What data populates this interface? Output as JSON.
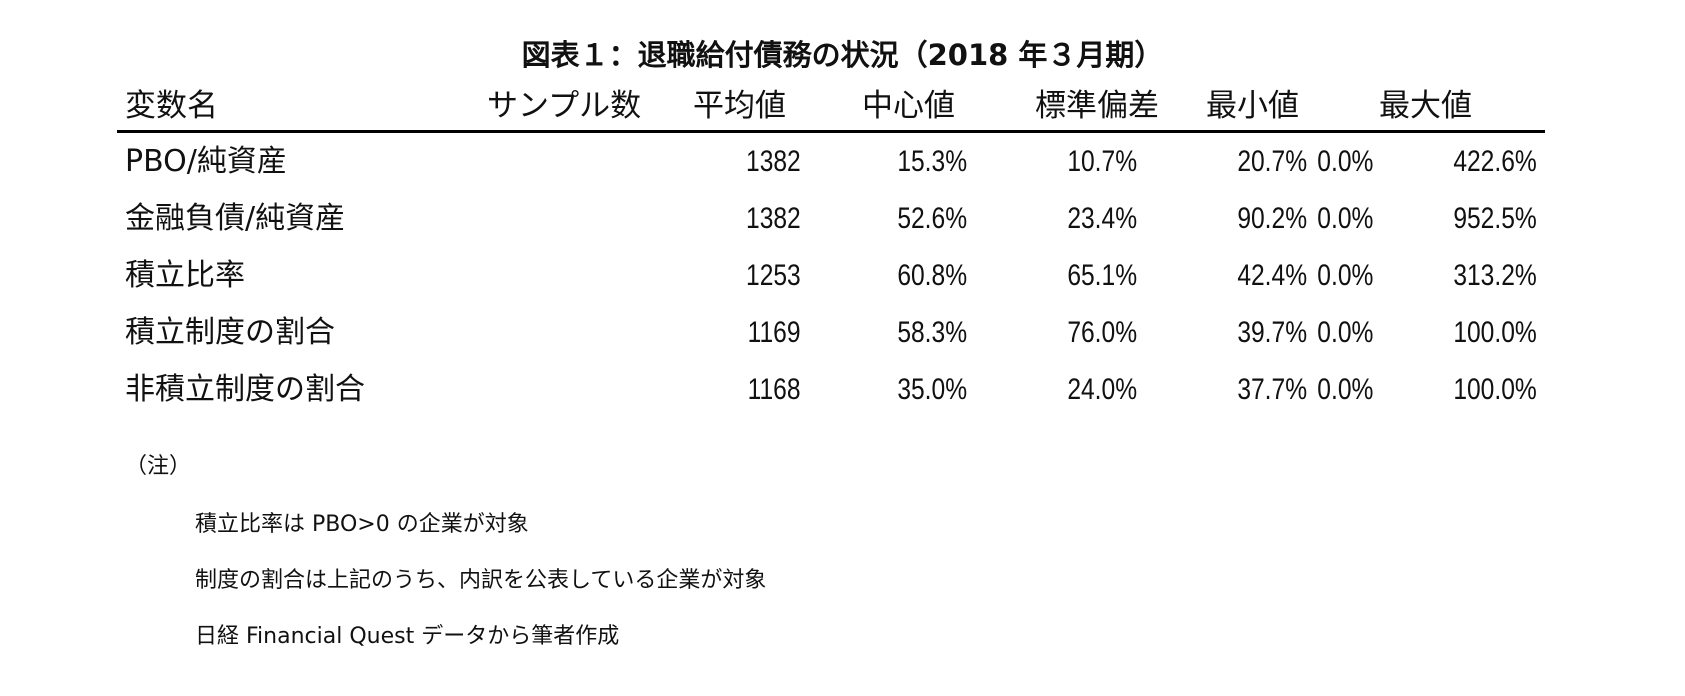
{
  "document": {
    "title": "図表１：退職給付債務の状況（2018 年３月期）"
  },
  "table": {
    "headers": {
      "name": "変数名",
      "sample": "サンプル数",
      "mean": "平均値",
      "median": "中心値",
      "sd": "標準偏差",
      "min": "最小値",
      "max": "最大値"
    },
    "rows": [
      {
        "name": "PBO/純資産",
        "sample": "1382",
        "mean": "15.3%",
        "median": "10.7%",
        "sd": "20.7%",
        "min": "0.0%",
        "max": "422.6%"
      },
      {
        "name": "金融負債/純資産",
        "sample": "1382",
        "mean": "52.6%",
        "median": "23.4%",
        "sd": "90.2%",
        "min": "0.0%",
        "max": "952.5%"
      },
      {
        "name": "積立比率",
        "sample": "1253",
        "mean": "60.8%",
        "median": "65.1%",
        "sd": "42.4%",
        "min": "0.0%",
        "max": "313.2%"
      },
      {
        "name": "積立制度の割合",
        "sample": "1169",
        "mean": "58.3%",
        "median": "76.0%",
        "sd": "39.7%",
        "min": "0.0%",
        "max": "100.0%"
      },
      {
        "name": "非積立制度の割合",
        "sample": "1168",
        "mean": "35.0%",
        "median": "24.0%",
        "sd": "37.7%",
        "min": "0.0%",
        "max": "100.0%"
      }
    ]
  },
  "notes": {
    "heading": "（注）",
    "lines": [
      "積立比率は PBO>0 の企業が対象",
      "制度の割合は上記のうち、内訳を公表している企業が対象",
      "日経 Financial Quest データから筆者作成"
    ]
  },
  "chart_data": {
    "type": "table",
    "title": "図表１：退職給付債務の状況（2018 年３月期）",
    "columns": [
      "変数名",
      "サンプル数",
      "平均値",
      "中心値",
      "標準偏差",
      "最小値",
      "最大値"
    ],
    "rows": [
      [
        "PBO/純資産",
        1382,
        "15.3%",
        "10.7%",
        "20.7%",
        "0.0%",
        "422.6%"
      ],
      [
        "金融負債/純資産",
        1382,
        "52.6%",
        "23.4%",
        "90.2%",
        "0.0%",
        "952.5%"
      ],
      [
        "積立比率",
        1253,
        "60.8%",
        "65.1%",
        "42.4%",
        "0.0%",
        "313.2%"
      ],
      [
        "積立制度の割合",
        1169,
        "58.3%",
        "76.0%",
        "39.7%",
        "0.0%",
        "100.0%"
      ],
      [
        "非積立制度の割合",
        1168,
        "35.0%",
        "24.0%",
        "37.7%",
        "0.0%",
        "100.0%"
      ]
    ]
  }
}
